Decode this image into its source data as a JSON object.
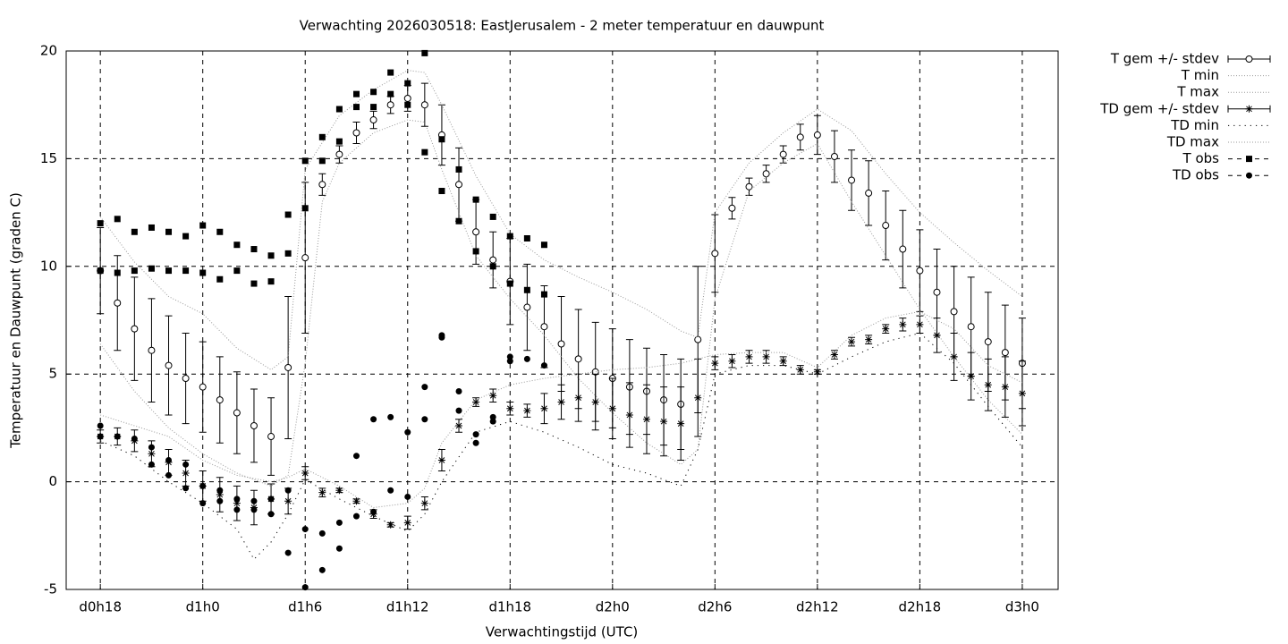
{
  "chart_data": {
    "type": "errorbar",
    "title": "Verwachting 2026030518: EastJerusalem - 2 meter temperatuur en dauwpunt",
    "xlabel": "Verwachtingstijd (UTC)",
    "ylabel": "Temperatuur en Dauwpunt (graden C)",
    "xlim": [
      16,
      74.1
    ],
    "xticks": [
      {
        "value": 18,
        "label": "d0h18"
      },
      {
        "value": 24,
        "label": "d1h0"
      },
      {
        "value": 30,
        "label": "d1h6"
      },
      {
        "value": 36,
        "label": "d1h12"
      },
      {
        "value": 42,
        "label": "d1h18"
      },
      {
        "value": 48,
        "label": "d2h0"
      },
      {
        "value": 54,
        "label": "d2h6"
      },
      {
        "value": 60,
        "label": "d2h12"
      },
      {
        "value": 66,
        "label": "d2h18"
      },
      {
        "value": 72,
        "label": "d3h0"
      }
    ],
    "ylim": [
      -5,
      20
    ],
    "yticks": [
      -5,
      0,
      5,
      10,
      15,
      20
    ],
    "grid": true,
    "legend": "outside-right-top",
    "series": [
      {
        "name": "T gem +/- stdev",
        "style": "errorbar",
        "marker": "circle-open",
        "color": "#000000",
        "x": [
          18,
          19,
          20,
          21,
          22,
          23,
          24,
          25,
          26,
          27,
          28,
          29,
          30,
          31,
          32,
          33,
          34,
          35,
          36,
          37,
          38,
          39,
          40,
          41,
          42,
          43,
          44,
          45,
          46,
          47,
          48,
          49,
          50,
          51,
          52,
          53,
          54,
          55,
          56,
          57,
          58,
          59,
          60,
          61,
          62,
          63,
          64,
          65,
          66,
          67,
          68,
          69,
          70,
          71,
          72
        ],
        "values": [
          9.8,
          8.3,
          7.1,
          6.1,
          5.4,
          4.8,
          4.4,
          3.8,
          3.2,
          2.6,
          2.1,
          5.3,
          10.4,
          13.8,
          15.2,
          16.2,
          16.8,
          17.5,
          17.8,
          17.5,
          16.1,
          13.8,
          11.6,
          10.3,
          9.3,
          8.1,
          7.2,
          6.4,
          5.7,
          5.1,
          4.8,
          4.4,
          4.2,
          3.8,
          3.6,
          6.6,
          10.6,
          12.7,
          13.7,
          14.3,
          15.2,
          16.0,
          16.1,
          15.1,
          14.0,
          13.4,
          11.9,
          10.8,
          9.8,
          8.8,
          7.9,
          7.2,
          6.5,
          6.0,
          5.5
        ],
        "errors": [
          2.0,
          2.2,
          2.4,
          2.4,
          2.3,
          2.1,
          2.1,
          2.0,
          1.9,
          1.7,
          1.8,
          3.3,
          3.5,
          0.5,
          0.4,
          0.5,
          0.4,
          0.4,
          0.6,
          1.0,
          1.4,
          1.7,
          1.5,
          1.3,
          2.0,
          2.0,
          1.9,
          2.2,
          2.3,
          2.3,
          2.3,
          2.2,
          2.0,
          2.1,
          2.1,
          3.4,
          1.8,
          0.5,
          0.4,
          0.4,
          0.4,
          0.6,
          0.9,
          1.2,
          1.4,
          1.5,
          1.6,
          1.8,
          1.9,
          2.0,
          2.1,
          2.3,
          2.3,
          2.2,
          2.1
        ]
      },
      {
        "name": "T min",
        "style": "line-fine",
        "color": "#999999",
        "x": [
          18,
          20,
          22,
          24,
          26,
          28,
          29,
          30,
          31,
          32,
          34,
          36,
          37,
          38,
          40,
          42,
          44,
          46,
          48,
          50,
          52,
          53,
          54,
          56,
          58,
          60,
          62,
          64,
          66,
          68,
          70,
          72
        ],
        "values": [
          6.4,
          4.2,
          2.5,
          1.3,
          0.4,
          -0.2,
          0.3,
          5.5,
          13.0,
          14.8,
          16.2,
          16.8,
          16.7,
          14.5,
          10.5,
          8.5,
          6.8,
          4.8,
          3.2,
          1.8,
          0.8,
          1.5,
          8.5,
          13.5,
          14.8,
          15.7,
          13.0,
          10.5,
          8.0,
          5.8,
          3.8,
          2.2
        ]
      },
      {
        "name": "T max",
        "style": "line-fine",
        "color": "#999999",
        "x": [
          18,
          20,
          22,
          24,
          26,
          28,
          29,
          30,
          32,
          34,
          36,
          37,
          38,
          40,
          42,
          44,
          46,
          48,
          50,
          52,
          53,
          54,
          56,
          58,
          60,
          62,
          64,
          66,
          68,
          70,
          72
        ],
        "values": [
          12.3,
          10.2,
          8.6,
          7.8,
          6.2,
          5.2,
          5.8,
          14.5,
          17.0,
          18.2,
          19.1,
          19.0,
          17.5,
          14.2,
          11.5,
          10.3,
          9.5,
          8.8,
          8.0,
          7.0,
          6.7,
          12.5,
          14.8,
          16.2,
          17.3,
          16.3,
          14.3,
          12.5,
          11.1,
          9.8,
          8.6
        ]
      },
      {
        "name": "TD gem +/- stdev",
        "style": "errorbar",
        "marker": "star",
        "color": "#000000",
        "x": [
          18,
          19,
          20,
          21,
          22,
          23,
          24,
          25,
          26,
          27,
          28,
          29,
          30,
          31,
          32,
          33,
          34,
          35,
          36,
          37,
          38,
          39,
          40,
          41,
          42,
          43,
          44,
          45,
          46,
          47,
          48,
          49,
          50,
          51,
          52,
          53,
          54,
          55,
          56,
          57,
          58,
          59,
          60,
          61,
          62,
          63,
          64,
          65,
          66,
          67,
          68,
          69,
          70,
          71,
          72
        ],
        "values": [
          2.1,
          2.1,
          1.9,
          1.3,
          0.9,
          0.4,
          -0.2,
          -0.6,
          -1.0,
          -1.2,
          -0.8,
          -0.9,
          0.4,
          -0.5,
          -0.4,
          -0.9,
          -1.5,
          -2.0,
          -1.9,
          -1.0,
          1.0,
          2.6,
          3.7,
          4.0,
          3.4,
          3.3,
          3.4,
          3.7,
          3.9,
          3.7,
          3.4,
          3.1,
          2.9,
          2.8,
          2.7,
          3.9,
          5.5,
          5.6,
          5.8,
          5.8,
          5.6,
          5.2,
          5.1,
          5.9,
          6.5,
          6.6,
          7.1,
          7.3,
          7.3,
          6.8,
          5.8,
          4.9,
          4.5,
          4.4,
          4.1
        ],
        "errors": [
          0.3,
          0.4,
          0.5,
          0.6,
          0.6,
          0.6,
          0.7,
          0.8,
          0.8,
          0.8,
          0.7,
          0.6,
          0.3,
          0.2,
          0.1,
          0.1,
          0.2,
          0.1,
          0.3,
          0.3,
          0.5,
          0.3,
          0.2,
          0.3,
          0.3,
          0.3,
          0.7,
          0.8,
          1.1,
          1.3,
          1.4,
          1.5,
          1.6,
          1.6,
          1.7,
          1.8,
          0.3,
          0.3,
          0.3,
          0.3,
          0.2,
          0.2,
          0.1,
          0.2,
          0.2,
          0.2,
          0.2,
          0.3,
          0.4,
          0.8,
          1.1,
          1.1,
          1.2,
          1.4,
          1.5
        ]
      },
      {
        "name": "TD min",
        "style": "line-sparse",
        "color": "#000000",
        "x": [
          18,
          20,
          22,
          24,
          26,
          27,
          28,
          29,
          30,
          32,
          34,
          36,
          37,
          38,
          40,
          42,
          44,
          46,
          48,
          50,
          52,
          53,
          54,
          56,
          58,
          60,
          62,
          64,
          66,
          68,
          70,
          72
        ],
        "values": [
          1.9,
          1.2,
          0.0,
          -1.0,
          -2.2,
          -3.6,
          -2.8,
          -1.5,
          0.1,
          -0.8,
          -1.6,
          -2.3,
          -1.5,
          0.0,
          2.3,
          2.8,
          2.3,
          1.6,
          0.8,
          0.4,
          -0.2,
          1.5,
          5.0,
          5.4,
          5.4,
          5.0,
          5.8,
          6.5,
          6.9,
          5.5,
          3.5,
          1.6
        ]
      },
      {
        "name": "TD max",
        "style": "line-fine",
        "color": "#999999",
        "x": [
          18,
          20,
          22,
          24,
          26,
          28,
          29,
          30,
          32,
          34,
          36,
          37,
          38,
          40,
          42,
          44,
          46,
          48,
          50,
          52,
          54,
          56,
          58,
          60,
          62,
          64,
          66,
          68,
          70,
          72
        ],
        "values": [
          3.1,
          2.6,
          2.1,
          1.0,
          0.3,
          0.0,
          0.2,
          0.6,
          -0.2,
          -1.2,
          -1.0,
          -0.3,
          1.8,
          3.8,
          4.5,
          4.8,
          5.0,
          5.2,
          5.3,
          5.5,
          5.9,
          6.0,
          6.0,
          5.3,
          6.8,
          7.6,
          7.9,
          7.1,
          5.4,
          4.6
        ]
      },
      {
        "name": "T obs",
        "style": "points",
        "marker": "square",
        "color": "#000000",
        "x": [
          18,
          18,
          19,
          19,
          20,
          20,
          21,
          21,
          22,
          22,
          23,
          23,
          24,
          24,
          25,
          25,
          26,
          26,
          27,
          27,
          28,
          28,
          29,
          29,
          30,
          30,
          31,
          31,
          32,
          32,
          33,
          33,
          34,
          34,
          35,
          35,
          36,
          36,
          37,
          37,
          38,
          38,
          39,
          39,
          40,
          40,
          41,
          41,
          42,
          42,
          43,
          43,
          44,
          44
        ],
        "values": [
          12.0,
          9.8,
          12.2,
          9.7,
          11.6,
          9.8,
          11.8,
          9.9,
          11.6,
          9.8,
          11.4,
          9.8,
          11.9,
          9.7,
          11.6,
          9.4,
          11.0,
          9.8,
          10.8,
          9.2,
          10.5,
          9.3,
          10.6,
          12.4,
          14.9,
          12.7,
          16.0,
          14.9,
          17.3,
          15.8,
          18.0,
          17.4,
          18.1,
          17.4,
          19.0,
          18.0,
          18.5,
          17.5,
          19.9,
          15.3,
          15.9,
          13.5,
          14.5,
          12.1,
          13.1,
          10.7,
          12.3,
          10.0,
          11.4,
          9.2,
          11.3,
          8.9,
          11.0,
          8.7
        ]
      },
      {
        "name": "TD obs",
        "style": "points",
        "marker": "circle",
        "color": "#000000",
        "x": [
          18,
          18,
          19,
          20,
          21,
          21,
          22,
          22,
          23,
          23,
          24,
          24,
          25,
          25,
          26,
          26,
          27,
          27,
          28,
          28,
          29,
          29,
          30,
          30,
          31,
          31,
          32,
          32,
          33,
          33,
          34,
          34,
          35,
          35,
          36,
          36,
          37,
          37,
          38,
          38,
          39,
          39,
          40,
          40,
          41,
          41,
          42,
          42,
          43,
          44
        ],
        "values": [
          2.6,
          2.1,
          2.1,
          2.0,
          1.6,
          0.8,
          0.3,
          1.0,
          0.8,
          -0.3,
          -0.2,
          -1.0,
          -0.4,
          -0.9,
          -0.8,
          -1.3,
          -0.9,
          -1.3,
          -0.8,
          -1.5,
          -0.4,
          -3.3,
          -2.2,
          -4.9,
          -2.4,
          -4.1,
          -1.9,
          -3.1,
          1.2,
          -1.6,
          2.9,
          -1.4,
          3.0,
          -0.4,
          2.3,
          -0.7,
          4.4,
          2.9,
          6.8,
          6.7,
          4.2,
          3.3,
          2.2,
          1.8,
          3.0,
          2.8,
          5.8,
          5.6,
          5.7,
          5.4
        ]
      }
    ]
  }
}
